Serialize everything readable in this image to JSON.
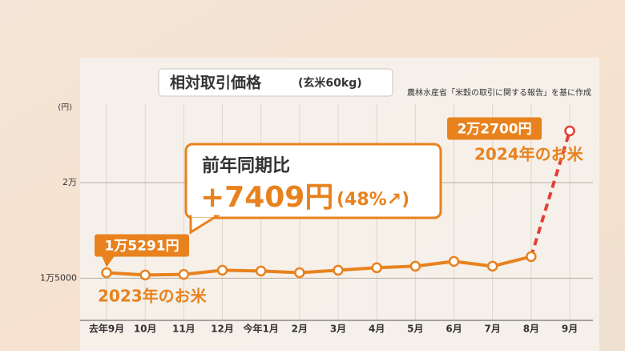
{
  "chart_data": {
    "type": "line",
    "title": "相対取引価格",
    "subtitle": "(玄米60kg)",
    "source": "農林水産省「米穀の取引に関する報告」を基に作成",
    "y_unit": "(円)",
    "categories": [
      "去年9月",
      "10月",
      "11月",
      "12月",
      "今年1月",
      "2月",
      "3月",
      "4月",
      "5月",
      "6月",
      "7月",
      "8月",
      "9月"
    ],
    "series": [
      {
        "color": "#e8821e",
        "values": [
          15291,
          15170,
          15200,
          15420,
          15380,
          15290,
          15420,
          15550,
          15630,
          15880,
          15630,
          16130,
          22700
        ],
        "value_labels": [
          "1万5291円",
          null,
          null,
          null,
          null,
          null,
          null,
          null,
          null,
          null,
          null,
          null,
          "2万2700円"
        ]
      }
    ],
    "ylim": [
      12800,
      24100
    ],
    "yticks": [
      {
        "value": 15000,
        "label": "1万5000"
      },
      {
        "value": 20000,
        "label": "2万"
      }
    ],
    "grid": true,
    "annotations": {
      "callout_title": "前年同期比",
      "callout_change": "+7409円",
      "callout_percent": "(48%↗)",
      "label_2023": "2023年のお米",
      "label_2024": "2024年のお米"
    }
  }
}
